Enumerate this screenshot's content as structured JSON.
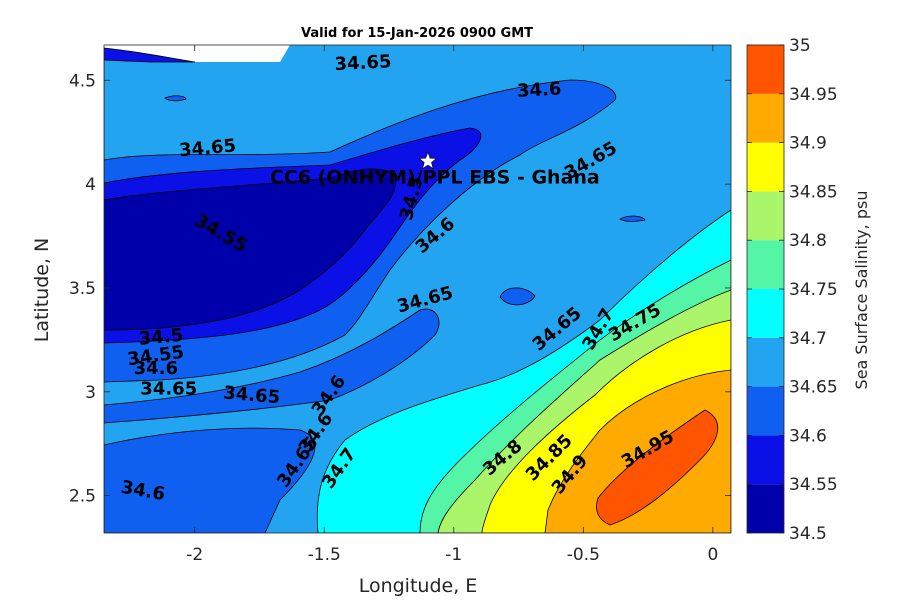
{
  "chart_data": {
    "type": "contour",
    "title": "Valid for 15-Jan-2026 0900 GMT",
    "xlabel": "Longitude, E",
    "ylabel": "Latitude, N",
    "xlim": [
      -2.35,
      0.07
    ],
    "ylim": [
      2.32,
      4.67
    ],
    "x_ticks": [
      -2,
      -1.5,
      -1,
      -0.5,
      0
    ],
    "x_tick_labels": [
      "-2",
      "-1.5",
      "-1",
      "-0.5",
      "0"
    ],
    "y_ticks": [
      2.5,
      3,
      3.5,
      4,
      4.5
    ],
    "y_tick_labels": [
      "2.5",
      "3",
      "3.5",
      "4",
      "4.5"
    ],
    "colorbar": {
      "label": "Sea Surface Salinity, psu",
      "levels": [
        34.5,
        34.55,
        34.6,
        34.65,
        34.7,
        34.75,
        34.8,
        34.85,
        34.9,
        34.95,
        35
      ],
      "tick_labels": [
        "34.5",
        "34.55",
        "34.6",
        "34.65",
        "34.7",
        "34.75",
        "34.8",
        "34.85",
        "34.9",
        "34.95",
        "35"
      ],
      "colors": [
        "#0000aa",
        "#0a10e6",
        "#0f60f0",
        "#22a4f0",
        "#00ffff",
        "#55f5a8",
        "#aaf56a",
        "#ffff00",
        "#ffaa00",
        "#ff5500"
      ]
    },
    "site": {
      "name": "CC6 (ONHYM)/PPL EBS  - Ghana",
      "lon": -1.1,
      "lat": 4.11,
      "marker": "star"
    },
    "contour_labels": [
      {
        "text": "34.65",
        "lon": -1.35,
        "lat": 4.58,
        "angle": -3
      },
      {
        "text": "34.6",
        "lon": -0.67,
        "lat": 4.45,
        "angle": -3
      },
      {
        "text": "34.65",
        "lon": -1.95,
        "lat": 4.17,
        "angle": -5
      },
      {
        "text": "34.65",
        "lon": -0.47,
        "lat": 4.11,
        "angle": -30
      },
      {
        "text": "34.5",
        "lon": -1.16,
        "lat": 3.93,
        "angle": -75
      },
      {
        "text": "34.55",
        "lon": -1.9,
        "lat": 3.76,
        "angle": 30
      },
      {
        "text": "34.6",
        "lon": -1.07,
        "lat": 3.75,
        "angle": -40
      },
      {
        "text": "34.65",
        "lon": -1.11,
        "lat": 3.44,
        "angle": -15
      },
      {
        "text": "34.65",
        "lon": -0.6,
        "lat": 3.3,
        "angle": -40
      },
      {
        "text": "34.7",
        "lon": -0.44,
        "lat": 3.3,
        "angle": -60
      },
      {
        "text": "34.75",
        "lon": -0.3,
        "lat": 3.33,
        "angle": -30
      },
      {
        "text": "34.5",
        "lon": -2.13,
        "lat": 3.26,
        "angle": -5
      },
      {
        "text": "34.55",
        "lon": -2.15,
        "lat": 3.17,
        "angle": -8
      },
      {
        "text": "34.6",
        "lon": -2.15,
        "lat": 3.11,
        "angle": 0
      },
      {
        "text": "34.65",
        "lon": -2.1,
        "lat": 3.01,
        "angle": 0
      },
      {
        "text": "34.65",
        "lon": -1.78,
        "lat": 2.98,
        "angle": 5
      },
      {
        "text": "34.6",
        "lon": -1.48,
        "lat": 2.98,
        "angle": -55
      },
      {
        "text": "34.6",
        "lon": -1.53,
        "lat": 2.8,
        "angle": -55
      },
      {
        "text": "34.65",
        "lon": -1.6,
        "lat": 2.66,
        "angle": -55
      },
      {
        "text": "34.7",
        "lon": -1.44,
        "lat": 2.63,
        "angle": -55
      },
      {
        "text": "34.8",
        "lon": -0.81,
        "lat": 2.68,
        "angle": -40
      },
      {
        "text": "34.85",
        "lon": -0.63,
        "lat": 2.68,
        "angle": -45
      },
      {
        "text": "34.9",
        "lon": -0.55,
        "lat": 2.6,
        "angle": -50
      },
      {
        "text": "34.95",
        "lon": -0.25,
        "lat": 2.72,
        "angle": -30
      },
      {
        "text": "34.6",
        "lon": -2.2,
        "lat": 2.52,
        "angle": 10
      }
    ]
  }
}
